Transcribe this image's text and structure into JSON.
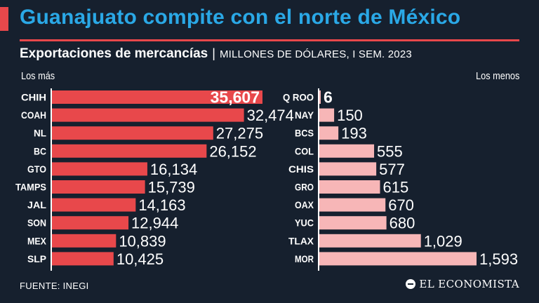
{
  "title": "Guanajuato compite con el norte de México",
  "subtitle": {
    "main": "Exportaciones de mercancías",
    "separator": "|",
    "unit": "MILLONES DE DÓLARES, I SEM. 2023"
  },
  "colors": {
    "background": "#16202e",
    "title": "#2aa8e6",
    "accent": "#e8484b",
    "bar_top": "#e8484b",
    "bar_bottom": "#f7b6b7",
    "axis": "#ffffff"
  },
  "chart_data": [
    {
      "type": "bar",
      "orientation": "horizontal",
      "group_label": "Los más",
      "categories": [
        "CHIH",
        "COAH",
        "NL",
        "BC",
        "GTO",
        "TAMPS",
        "JAL",
        "SON",
        "MEX",
        "SLP"
      ],
      "values": [
        35607,
        32474,
        27275,
        26152,
        16134,
        15739,
        14163,
        12944,
        10839,
        10425
      ],
      "labels": [
        "35,607",
        "32,474",
        "27,275",
        "26,152",
        "16,134",
        "15,739",
        "14,163",
        "12,944",
        "10,839",
        "10,425"
      ],
      "xlim": [
        0,
        35607
      ],
      "highlight_first": true
    },
    {
      "type": "bar",
      "orientation": "horizontal",
      "group_label": "Los menos",
      "categories": [
        "Q ROO",
        "NAY",
        "BCS",
        "COL",
        "CHIS",
        "GRO",
        "OAX",
        "YUC",
        "TLAX",
        "MOR"
      ],
      "values": [
        6,
        150,
        193,
        555,
        577,
        615,
        670,
        680,
        1029,
        1593
      ],
      "labels": [
        "6",
        "150",
        "193",
        "555",
        "577",
        "615",
        "670",
        "680",
        "1,029",
        "1,593"
      ],
      "xlim": [
        0,
        1593
      ],
      "highlight_first": true
    }
  ],
  "source": "FUENTE: INEGI",
  "logo": "EL ECONOMISTA"
}
